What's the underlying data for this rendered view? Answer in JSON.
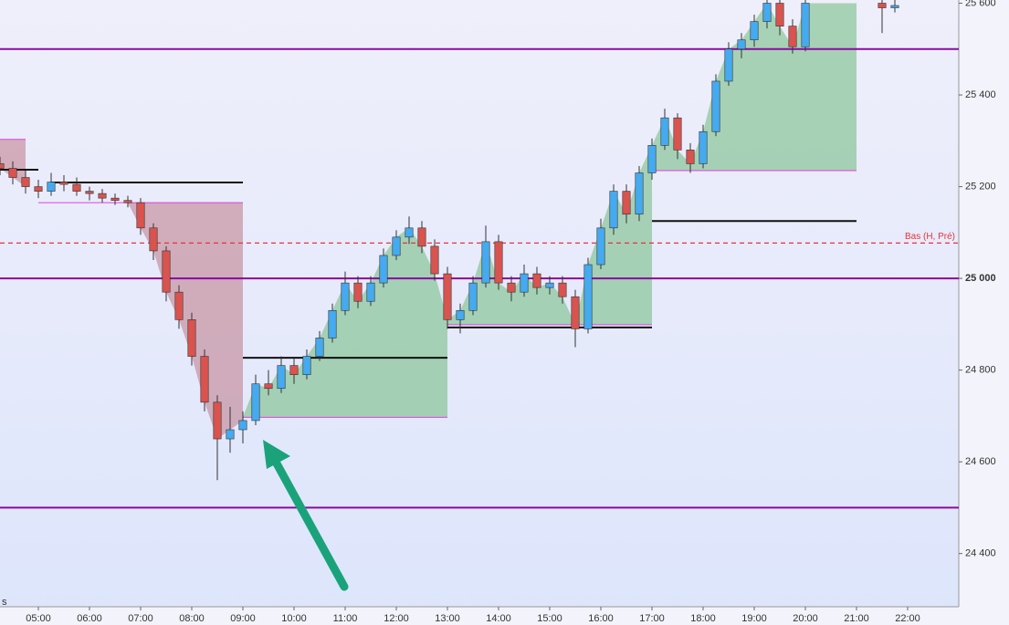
{
  "chart_data": {
    "type": "candlestick",
    "x": [
      4.25,
      4.5,
      4.75,
      5,
      5.25,
      5.5,
      5.75,
      6,
      6.25,
      6.5,
      6.75,
      7,
      7.25,
      7.5,
      7.75,
      8,
      8.25,
      8.5,
      8.75,
      9,
      9.25,
      9.5,
      9.75,
      10,
      10.25,
      10.5,
      10.75,
      11,
      11.25,
      11.5,
      11.75,
      12,
      12.25,
      12.5,
      12.75,
      13,
      13.25,
      13.5,
      13.75,
      14,
      14.25,
      14.5,
      14.75,
      15,
      15.25,
      15.5,
      15.75,
      16,
      16.25,
      16.5,
      16.75,
      17,
      17.25,
      17.5,
      17.75,
      18,
      18.25,
      18.5,
      18.75,
      19,
      19.25,
      19.5,
      19.75,
      20,
      21.5,
      21.75
    ],
    "open": [
      25250,
      25240,
      25220,
      25200,
      25190,
      25210,
      25205,
      25190,
      25185,
      25175,
      25170,
      25165,
      25110,
      25060,
      24970,
      24910,
      24830,
      24730,
      24650,
      24670,
      24690,
      24770,
      24760,
      24810,
      24790,
      24830,
      24870,
      24930,
      24990,
      24950,
      24990,
      25050,
      25090,
      25110,
      25070,
      25010,
      24910,
      24930,
      24990,
      25080,
      24990,
      24970,
      25010,
      24980,
      24990,
      24960,
      24890,
      25030,
      25110,
      25190,
      25140,
      25230,
      25290,
      25350,
      25280,
      25250,
      25320,
      25430,
      25500,
      25520,
      25560,
      25600,
      25550,
      25505,
      25600,
      25590
    ],
    "high": [
      25265,
      25255,
      25235,
      25215,
      25230,
      25225,
      25220,
      25200,
      25195,
      25185,
      25180,
      25175,
      25120,
      25070,
      24985,
      24925,
      24845,
      24745,
      24720,
      24710,
      24790,
      24800,
      24830,
      24825,
      24845,
      24885,
      24945,
      25015,
      25005,
      25005,
      25065,
      25105,
      25135,
      25125,
      25085,
      25025,
      24945,
      25005,
      25115,
      25095,
      25005,
      25030,
      25025,
      25005,
      25005,
      24975,
      25045,
      25130,
      25205,
      25205,
      25245,
      25305,
      25370,
      25360,
      25295,
      25335,
      25445,
      25515,
      25535,
      25575,
      25607,
      25607,
      25565,
      25607,
      25607,
      25607
    ],
    "low": [
      25225,
      25205,
      25185,
      25175,
      25180,
      25190,
      25180,
      25170,
      25165,
      25160,
      25155,
      25095,
      25040,
      24950,
      24890,
      24810,
      24710,
      24560,
      24620,
      24640,
      24680,
      24745,
      24750,
      24770,
      24780,
      24820,
      24860,
      24920,
      24935,
      24940,
      24980,
      25040,
      25075,
      25055,
      24995,
      24890,
      24880,
      24920,
      24980,
      24975,
      24950,
      24960,
      24965,
      24965,
      24945,
      24850,
      24880,
      25020,
      25095,
      25120,
      25125,
      25215,
      25280,
      25260,
      25230,
      25240,
      25310,
      25420,
      25480,
      25505,
      25545,
      25530,
      25490,
      25495,
      25535,
      25580
    ],
    "close": [
      25240,
      25220,
      25200,
      25190,
      25210,
      25205,
      25190,
      25185,
      25175,
      25170,
      25165,
      25110,
      25060,
      24970,
      24910,
      24830,
      24730,
      24650,
      24670,
      24690,
      24770,
      24760,
      24810,
      24790,
      24830,
      24870,
      24930,
      24990,
      24950,
      24990,
      25050,
      25090,
      25110,
      25070,
      25010,
      24910,
      24930,
      24990,
      25080,
      24990,
      24970,
      25010,
      24980,
      24990,
      24960,
      24890,
      25030,
      25110,
      25190,
      25140,
      25230,
      25290,
      25350,
      25280,
      25250,
      25320,
      25430,
      25500,
      25520,
      25560,
      25600,
      25550,
      25505,
      25600,
      25590,
      25595
    ],
    "up_color": "#45aaf0",
    "down_color": "#d9534f",
    "xlim": [
      4.25,
      23.0
    ],
    "ylim": [
      24284,
      25607
    ],
    "xticks": [
      {
        "value": 5,
        "label": "05:00"
      },
      {
        "value": 6,
        "label": "06:00"
      },
      {
        "value": 7,
        "label": "07:00"
      },
      {
        "value": 8,
        "label": "08:00"
      },
      {
        "value": 9,
        "label": "09:00"
      },
      {
        "value": 10,
        "label": "10:00"
      },
      {
        "value": 11,
        "label": "11:00"
      },
      {
        "value": 12,
        "label": "12:00"
      },
      {
        "value": 13,
        "label": "13:00"
      },
      {
        "value": 14,
        "label": "14:00"
      },
      {
        "value": 15,
        "label": "15:00"
      },
      {
        "value": 16,
        "label": "16:00"
      },
      {
        "value": 17,
        "label": "17:00"
      },
      {
        "value": 18,
        "label": "18:00"
      },
      {
        "value": 19,
        "label": "19:00"
      },
      {
        "value": 20,
        "label": "20:00"
      },
      {
        "value": 21,
        "label": "21:00"
      },
      {
        "value": 22,
        "label": "22:00"
      }
    ],
    "yticks": [
      {
        "value": 24400,
        "label": "24 400"
      },
      {
        "value": 24600,
        "label": "24 600"
      },
      {
        "value": 24800,
        "label": "24 800"
      },
      {
        "value": 25000,
        "label": "25 000"
      },
      {
        "value": 25200,
        "label": "25 200"
      },
      {
        "value": 25400,
        "label": "25 400"
      },
      {
        "value": 25600,
        "label": "25 600"
      }
    ],
    "bold_ytick": 25000,
    "h_lines": [
      {
        "value": 25500,
        "color": "#8a0aa0"
      },
      {
        "value": 25000,
        "color": "#8a0aa0"
      },
      {
        "value": 24500,
        "color": "#8a0aa0"
      }
    ],
    "dashed_line": {
      "value": 25077,
      "label": "Bas (H, Pré)",
      "color": "#e8323c"
    },
    "segments": [
      {
        "x0": 4.25,
        "x1": 5.0,
        "value": 25237
      },
      {
        "x0": 5.25,
        "x1": 9.0,
        "value": 25209
      },
      {
        "x0": 9.0,
        "x1": 13.0,
        "value": 24827
      },
      {
        "x0": 13.0,
        "x1": 17.0,
        "value": 24893
      },
      {
        "x0": 17.0,
        "x1": 21.0,
        "value": 25125
      }
    ],
    "zones": [
      {
        "x0": 4.25,
        "x1": 4.75,
        "level": 25303,
        "direction": "down"
      },
      {
        "x0": 5.0,
        "x1": 9.0,
        "level": 25165,
        "direction": "down"
      },
      {
        "x0": 9.0,
        "x1": 13.0,
        "level": 24697,
        "direction": "up"
      },
      {
        "x0": 13.0,
        "x1": 17.0,
        "level": 24899,
        "direction": "up"
      },
      {
        "x0": 17.0,
        "x1": 21.0,
        "level": 25235,
        "direction": "up"
      }
    ],
    "corner_text": "s"
  }
}
